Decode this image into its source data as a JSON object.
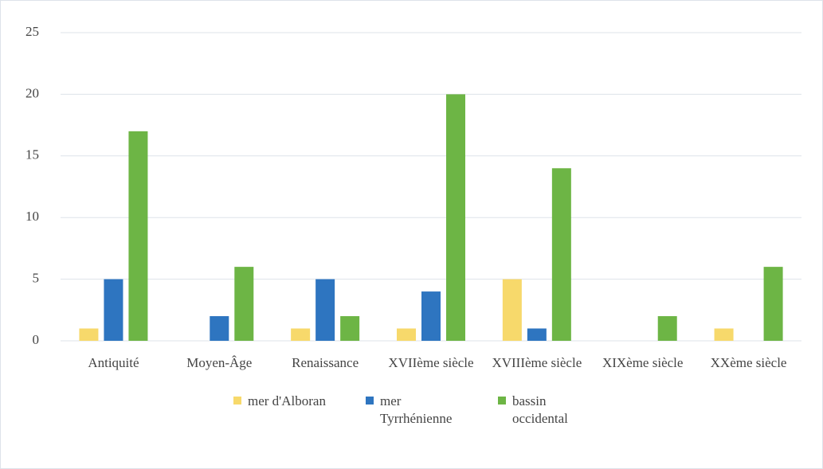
{
  "chart_data": {
    "type": "bar",
    "categories": [
      "Antiquité",
      "Moyen-Âge",
      "Renaissance",
      "XVIIème siècle",
      "XVIIIème siècle",
      "XIXème siècle",
      "XXème siècle"
    ],
    "series": [
      {
        "name": "mer d'Alboran",
        "color": "#f7d96b",
        "values": [
          1,
          0,
          1,
          1,
          5,
          0,
          1
        ]
      },
      {
        "name": "mer Tyrrhénienne",
        "color": "#2e75c0",
        "values": [
          5,
          2,
          5,
          4,
          1,
          0,
          0
        ]
      },
      {
        "name": "bassin occidental",
        "color": "#6db545",
        "values": [
          17,
          6,
          2,
          20,
          14,
          2,
          6
        ]
      }
    ],
    "ylim": [
      0,
      25
    ],
    "yticks": [
      0,
      5,
      10,
      15,
      20,
      25
    ],
    "grid": true,
    "legend": "bottom"
  }
}
